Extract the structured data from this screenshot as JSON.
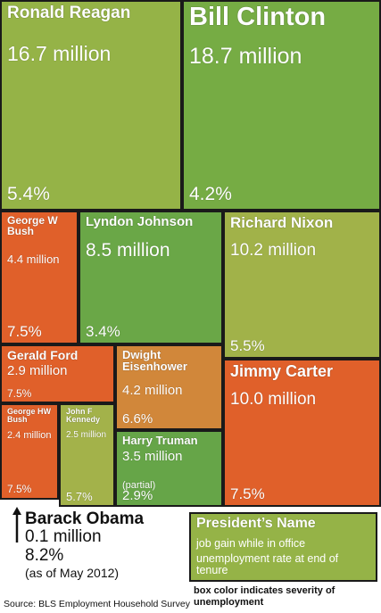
{
  "chart_data": {
    "type": "treemap",
    "series_label": "Jobs gained while in office",
    "items": [
      {
        "name": "Ronald Reagan",
        "gain_label": "16.7 million",
        "gain": 16.7,
        "rate_label": "5.4%",
        "rate": 5.4,
        "color": "#95b347"
      },
      {
        "name": "Bill Clinton",
        "gain_label": "18.7 million",
        "gain": 18.7,
        "rate_label": "4.2%",
        "rate": 4.2,
        "color": "#76ac44"
      },
      {
        "name": "George W Bush",
        "gain_label": "4.4 million",
        "gain": 4.4,
        "rate_label": "7.5%",
        "rate": 7.5,
        "color": "#e0602a"
      },
      {
        "name": "Lyndon Johnson",
        "gain_label": "8.5 million",
        "gain": 8.5,
        "rate_label": "3.4%",
        "rate": 3.4,
        "color": "#6aa747"
      },
      {
        "name": "Richard Nixon",
        "gain_label": "10.2 million",
        "gain": 10.2,
        "rate_label": "5.5%",
        "rate": 5.5,
        "color": "#a1b249"
      },
      {
        "name": "Gerald Ford",
        "gain_label": "2.9 million",
        "gain": 2.9,
        "rate_label": "7.5%",
        "rate": 7.5,
        "color": "#e0602a"
      },
      {
        "name": "Dwight Eisenhower",
        "gain_label": "4.2 million",
        "gain": 4.2,
        "rate_label": "6.6%",
        "rate": 6.6,
        "color": "#d1873a"
      },
      {
        "name": "Jimmy Carter",
        "gain_label": "10.0 million",
        "gain": 10.0,
        "rate_label": "7.5%",
        "rate": 7.5,
        "color": "#e0602a"
      },
      {
        "name": "George HW Bush",
        "gain_label": "2.4 million",
        "gain": 2.4,
        "rate_label": "7.5%",
        "rate": 7.5,
        "color": "#e0602a"
      },
      {
        "name": "John F Kennedy",
        "gain_label": "2.5 million",
        "gain": 2.5,
        "rate_label": "5.7%",
        "rate": 5.7,
        "color": "#a3b24a"
      },
      {
        "name": "Harry Truman",
        "gain_label": "3.5 million",
        "gain": 3.5,
        "note": "(partial)",
        "rate_label": "2.9%",
        "rate": 2.9,
        "color": "#66a548"
      }
    ],
    "outside_item": {
      "name": "Barack Obama",
      "gain_label": "0.1 million",
      "gain": 0.1,
      "rate_label": "8.2%",
      "rate": 8.2,
      "note": "(as of May 2012)"
    },
    "legend": {
      "name": "President’s Name",
      "gain": "job gain while in office",
      "rate": "unemployment rate at end of tenure",
      "note": "box color indicates severity of unemployment"
    },
    "source": "Source: BLS Employment Household Survey"
  }
}
